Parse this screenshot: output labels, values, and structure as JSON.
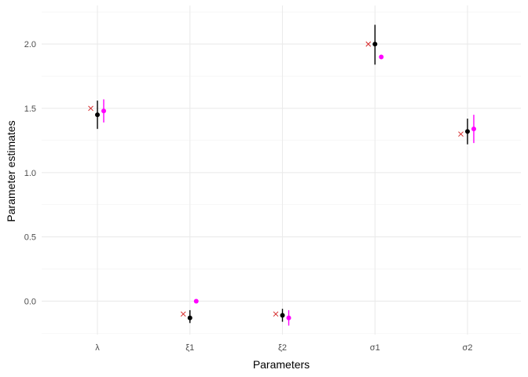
{
  "chart_data": {
    "type": "scatter",
    "xlabel": "Parameters",
    "ylabel": "Parameter estimates",
    "categories": [
      "λ",
      "ξ1",
      "ξ2",
      "σ1",
      "σ2"
    ],
    "ylim": [
      -0.26,
      2.3
    ],
    "yticks": [
      0.0,
      0.5,
      1.0,
      1.5,
      2.0
    ],
    "ytick_labels": [
      "0.0",
      "0.5",
      "1.0",
      "1.5",
      "2.0"
    ],
    "grid": true,
    "legend": "none",
    "series": [
      {
        "marker": "cross",
        "color": "#d62728",
        "values": [
          1.5,
          -0.1,
          -0.1,
          2.0,
          1.3
        ]
      },
      {
        "marker": "point-with-interval",
        "color": "#000000",
        "values": [
          1.45,
          -0.13,
          -0.11,
          2.0,
          1.32
        ],
        "lower": [
          1.34,
          -0.17,
          -0.16,
          1.84,
          1.22
        ],
        "upper": [
          1.56,
          -0.07,
          -0.06,
          2.15,
          1.42
        ]
      },
      {
        "marker": "point-with-interval",
        "color": "#ff00ff",
        "values": [
          1.48,
          0.0,
          -0.13,
          1.9,
          1.34
        ],
        "lower": [
          1.39,
          null,
          -0.19,
          null,
          1.23
        ],
        "upper": [
          1.57,
          null,
          -0.07,
          null,
          1.45
        ]
      }
    ]
  }
}
